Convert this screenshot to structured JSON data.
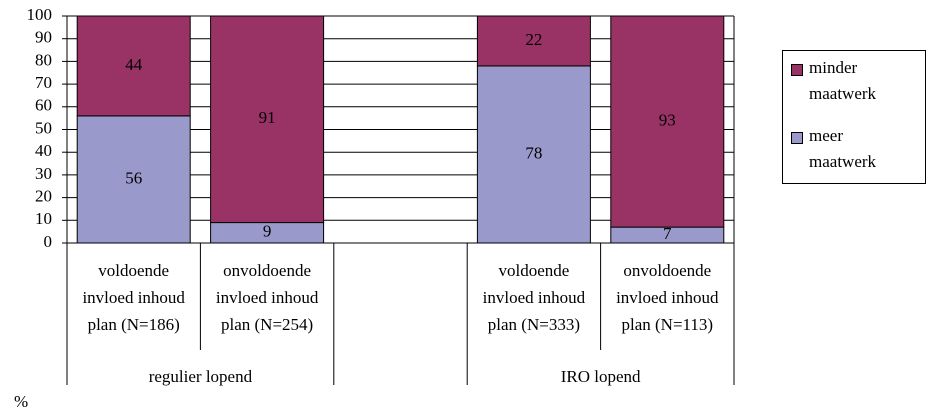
{
  "chart_data": {
    "type": "stacked_bar",
    "y_label": "%",
    "categories": [
      [
        "voldoende",
        "invloed inhoud",
        "plan (N=186)"
      ],
      [
        "onvoldoende",
        "invloed inhoud",
        "plan (N=254)"
      ],
      null,
      [
        "voldoende",
        "invloed inhoud",
        "plan (N=333)"
      ],
      [
        "onvoldoende",
        "invloed inhoud",
        "plan (N=113)"
      ]
    ],
    "groups": [
      {
        "label": "regulier lopend",
        "span": [
          0,
          1
        ]
      },
      {
        "label": "IRO lopend",
        "span": [
          3,
          4
        ]
      }
    ],
    "series": [
      {
        "name": "meer maatwerk",
        "color": "#9999cc",
        "values": [
          56,
          9,
          null,
          78,
          7
        ]
      },
      {
        "name": "minder maatwerk",
        "color": "#993366",
        "values": [
          44,
          91,
          null,
          22,
          93
        ]
      }
    ],
    "ylim": [
      0,
      100
    ],
    "yticks": [
      0,
      10,
      20,
      30,
      40,
      50,
      60,
      70,
      80,
      90,
      100
    ],
    "grid": true,
    "legend": "right"
  }
}
